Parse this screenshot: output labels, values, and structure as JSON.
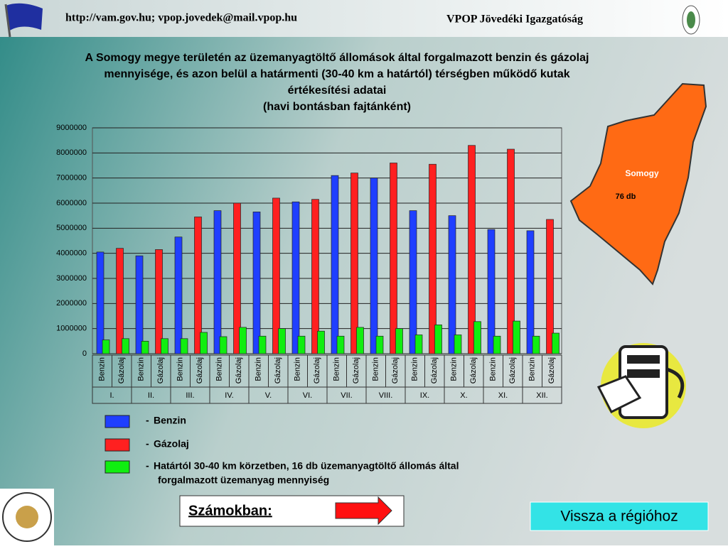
{
  "header": {
    "url": "http://vam.gov.hu; vpop.jovedek@mail.vpop.hu",
    "org": "VPOP Jövedéki Igazgatóság"
  },
  "map": {
    "name": "Somogy",
    "count": "76 db"
  },
  "buttons": {
    "numbers": "Számokban:",
    "back": "Vissza a régióhoz"
  },
  "chart_data": {
    "type": "bar",
    "title": [
      "A Somogy megye területén az üzemanyagtöltő állomások által forgalmazott benzin és gázolaj",
      "mennyisége, és azon belül a határmenti (30-40 km a határtól) térségben működő kutak",
      "értékesítési adatai",
      "(havi bontásban fajtánként)"
    ],
    "categories": [
      "I.",
      "II.",
      "III.",
      "IV.",
      "V.",
      "VI.",
      "VII.",
      "VIII.",
      "IX.",
      "X.",
      "XI.",
      "XII."
    ],
    "subcategories": [
      "Benzin",
      "Gázolaj"
    ],
    "legend_prefix": "-",
    "series": [
      {
        "name": "Benzin",
        "color": "#1f3fff",
        "values": [
          4050000,
          3900000,
          4650000,
          5700000,
          5650000,
          6050000,
          7100000,
          7000000,
          5700000,
          5500000,
          4950000,
          4900000
        ]
      },
      {
        "name": "Gázolaj",
        "color": "#ff2020",
        "values": [
          4200000,
          4150000,
          5450000,
          6000000,
          6200000,
          6150000,
          7200000,
          7600000,
          7550000,
          8300000,
          8150000,
          5350000
        ]
      },
      {
        "name": "Határtól 30-40 km körzetben, 16 db üzemanyagtöltő állomás által forgalmazott üzemanyag mennyiség",
        "name_lines": [
          "Határtól 30-40 km körzetben, 16 db üzemanyagtöltő állomás által",
          "forgalmazott üzemanyag mennyiség"
        ],
        "color": "#10ee10",
        "values": [
          [
            550000,
            600000
          ],
          [
            500000,
            600000
          ],
          [
            600000,
            850000
          ],
          [
            680000,
            1050000
          ],
          [
            700000,
            1000000
          ],
          [
            700000,
            900000
          ],
          [
            700000,
            1050000
          ],
          [
            700000,
            1000000
          ],
          [
            750000,
            1150000
          ],
          [
            750000,
            1280000
          ],
          [
            700000,
            1300000
          ],
          [
            700000,
            820000
          ]
        ]
      }
    ],
    "ylim": [
      0,
      9000000
    ],
    "yticks": [
      0,
      1000000,
      2000000,
      3000000,
      4000000,
      5000000,
      6000000,
      7000000,
      8000000,
      9000000
    ],
    "grid": true
  }
}
